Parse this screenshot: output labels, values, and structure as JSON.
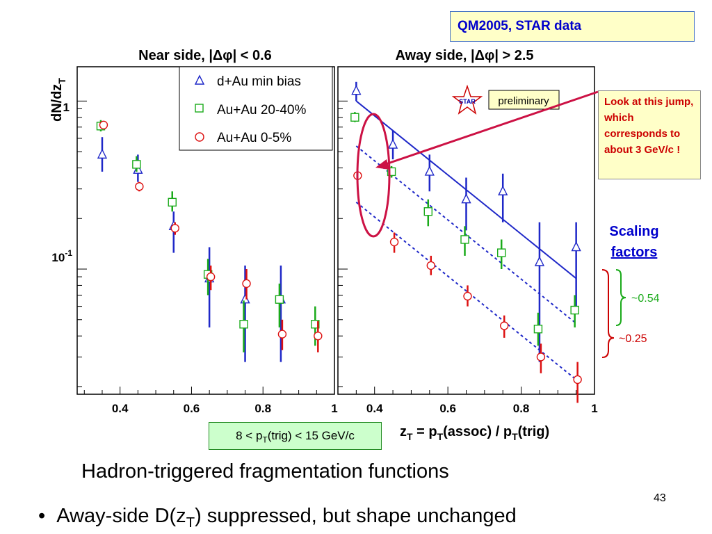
{
  "chart_data": [
    {
      "type": "scatter",
      "title": "Near side, |Δφ| < 0.6",
      "ylabel_main": "dN/dz",
      "ylabel_sub": "T",
      "yscale": "log",
      "ylim": [
        0.018,
        1.6
      ],
      "xlim": [
        0.28,
        1.0
      ],
      "xticks": [
        "0.4",
        "0.6",
        "0.8",
        "1"
      ],
      "ytick_one": "1",
      "ytick_tenth_base": "10",
      "ytick_tenth_exp": "-1",
      "legend": [
        "d+Au min bias",
        "Au+Au 20-40%",
        "Au+Au 0-5%"
      ],
      "series": [
        {
          "name": "d+Au min bias",
          "color": "#1f28c8",
          "marker": "triangle",
          "x": [
            0.35,
            0.45,
            0.55,
            0.65,
            0.75,
            0.85
          ],
          "y": [
            0.48,
            0.39,
            0.18,
            0.088,
            0.066,
            0.066
          ],
          "err": [
            [
              0.38,
              0.61
            ],
            [
              0.33,
              0.48
            ],
            [
              0.125,
              0.22
            ],
            [
              0.045,
              0.135
            ],
            [
              0.028,
              0.105
            ],
            [
              0.028,
              0.105
            ]
          ]
        },
        {
          "name": "Au+Au 20-40%",
          "color": "#1aaa1a",
          "marker": "square",
          "x": [
            0.35,
            0.45,
            0.55,
            0.65,
            0.75,
            0.85,
            0.95
          ],
          "y": [
            0.71,
            0.42,
            0.25,
            0.093,
            0.047,
            0.066,
            0.047
          ],
          "err": [
            [
              0.66,
              0.77
            ],
            [
              0.38,
              0.47
            ],
            [
              0.22,
              0.29
            ],
            [
              0.07,
              0.115
            ],
            [
              0.032,
              0.065
            ],
            [
              0.045,
              0.082
            ],
            [
              0.035,
              0.06
            ]
          ]
        },
        {
          "name": "Au+Au 0-5%",
          "color": "#dd1111",
          "marker": "circle",
          "x": [
            0.35,
            0.45,
            0.55,
            0.65,
            0.75,
            0.85,
            0.95
          ],
          "y": [
            0.72,
            0.31,
            0.175,
            0.09,
            0.082,
            0.041,
            0.04
          ],
          "err": [
            [
              0.68,
              0.76
            ],
            [
              0.29,
              0.33
            ],
            [
              0.16,
              0.19
            ],
            [
              0.075,
              0.105
            ],
            [
              0.066,
              0.1
            ],
            [
              0.033,
              0.05
            ],
            [
              0.032,
              0.049
            ]
          ]
        }
      ]
    },
    {
      "type": "scatter",
      "title": "Away side, |Δφ| > 2.5",
      "xlabel": "z",
      "xlabel_parts": [
        "z",
        "T",
        " = p",
        "T",
        "(assoc) / p",
        "T",
        "(trig)"
      ],
      "yscale": "log",
      "ylim": [
        0.018,
        1.6
      ],
      "xlim": [
        0.3,
        1.0
      ],
      "xticks": [
        "0.4",
        "0.6",
        "0.8",
        "1"
      ],
      "badge": "preliminary",
      "logo": "STAR",
      "series": [
        {
          "name": "d+Au min bias",
          "color": "#1f28c8",
          "marker": "triangle",
          "x": [
            0.35,
            0.45,
            0.55,
            0.65,
            0.75,
            0.85,
            0.95
          ],
          "y": [
            1.15,
            0.55,
            0.38,
            0.26,
            0.29,
            0.11,
            0.135
          ],
          "err": [
            [
              1.0,
              1.3
            ],
            [
              0.45,
              0.67
            ],
            [
              0.29,
              0.48
            ],
            [
              0.17,
              0.35
            ],
            [
              0.19,
              0.37
            ],
            [
              0.028,
              0.19
            ],
            [
              0.055,
              0.19
            ]
          ]
        },
        {
          "name": "Au+Au 20-40%",
          "color": "#1aaa1a",
          "marker": "square",
          "x": [
            0.35,
            0.45,
            0.55,
            0.65,
            0.75,
            0.85,
            0.95
          ],
          "y": [
            0.8,
            0.38,
            0.22,
            0.15,
            0.125,
            0.044,
            0.057
          ],
          "err": [
            [
              0.75,
              0.86
            ],
            [
              0.35,
              0.41
            ],
            [
              0.18,
              0.26
            ],
            [
              0.12,
              0.18
            ],
            [
              0.1,
              0.15
            ],
            [
              0.035,
              0.055
            ],
            [
              0.045,
              0.07
            ]
          ]
        },
        {
          "name": "Au+Au 0-5%",
          "color": "#dd1111",
          "marker": "circle",
          "x": [
            0.35,
            0.45,
            0.55,
            0.65,
            0.75,
            0.85,
            0.95
          ],
          "y": [
            0.36,
            0.145,
            0.105,
            0.069,
            0.046,
            0.03,
            0.022
          ],
          "err": [
            [
              0.35,
              0.37
            ],
            [
              0.125,
              0.165
            ],
            [
              0.092,
              0.12
            ],
            [
              0.06,
              0.08
            ],
            [
              0.039,
              0.053
            ],
            [
              0.024,
              0.036
            ],
            [
              0.016,
              0.028
            ]
          ]
        }
      ],
      "fits": [
        {
          "color": "#1f28c8",
          "dashed": false,
          "x": [
            0.35,
            0.95
          ],
          "y": [
            1.0,
            0.088
          ]
        },
        {
          "color": "#1f28c8",
          "dashed": true,
          "x": [
            0.35,
            0.95
          ],
          "y": [
            0.54,
            0.0475
          ]
        },
        {
          "color": "#1f28c8",
          "dashed": true,
          "x": [
            0.35,
            0.95
          ],
          "y": [
            0.25,
            0.022
          ]
        }
      ]
    }
  ],
  "annotations": {
    "header_box": "QM2005, STAR data",
    "callout": "Look at this jump, which corresponds to about 3 GeV/c !",
    "scaling_line1": "Scaling",
    "scaling_line2": "factors",
    "factor_green": "~0.54",
    "factor_red": "~0.25",
    "trigger_parts": [
      "8 < p",
      "T",
      "(trig) < 15 GeV/c"
    ]
  },
  "slide": {
    "caption": "Hadron-triggered fragmentation functions",
    "page_number": "43",
    "bullet_parts": [
      "Away-side D(z",
      "T",
      ") suppressed, but shape unchanged"
    ]
  },
  "colors": {
    "blue": "#1f28c8",
    "green": "#1aaa1a",
    "red": "#dd1111",
    "accent_blue": "#0000cc",
    "accent_red": "#cc0000"
  }
}
